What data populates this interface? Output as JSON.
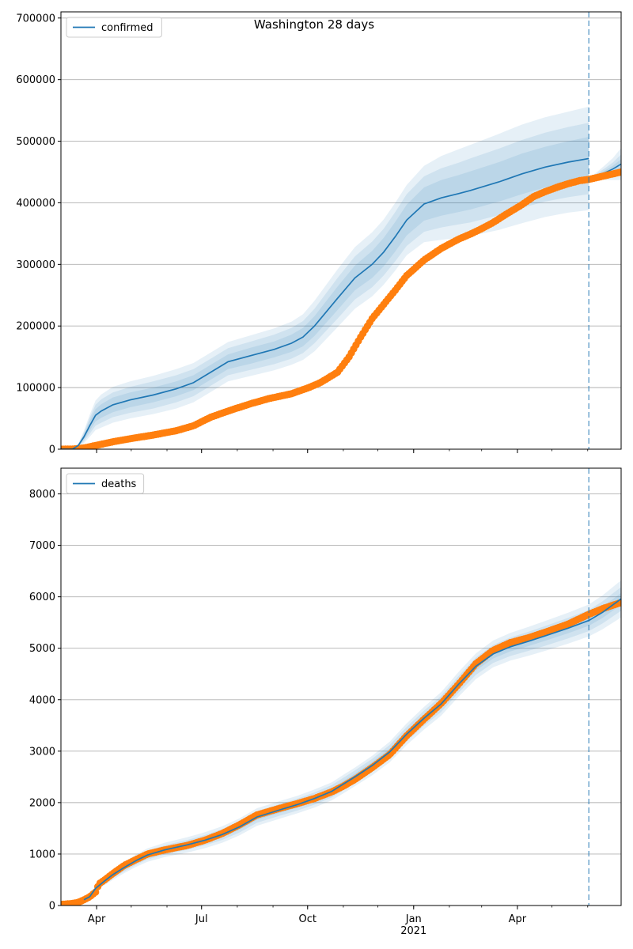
{
  "figure": {
    "title": "Washington 28 days"
  },
  "colors": {
    "model": "#1f77b4",
    "observed": "#ff7f0e",
    "grid": "#b0b0b0",
    "forecast_line": "#1f77b4"
  },
  "chart_data": [
    {
      "type": "line",
      "name": "confirmed",
      "legend": [
        "confirmed"
      ],
      "legend_placement": "top-left",
      "grid": true,
      "ylim": [
        0,
        710000
      ],
      "yticks": [
        0,
        100000,
        200000,
        300000,
        400000,
        500000,
        600000,
        700000
      ],
      "ytick_labels": [
        "0",
        "100000",
        "200000",
        "300000",
        "400000",
        "500000",
        "600000",
        "700000"
      ],
      "x_unit": "days since 2020-03-01",
      "xlim": [
        0,
        486
      ],
      "forecast_start_x": 458,
      "model_end_x": 458,
      "model_line": {
        "x": [
          0,
          10,
          15,
          20,
          25,
          30,
          35,
          45,
          60,
          80,
          100,
          115,
          130,
          145,
          165,
          185,
          200,
          210,
          220,
          240,
          255,
          270,
          280,
          290,
          300,
          315,
          330,
          345,
          355,
          380,
          400,
          420,
          440,
          458
        ],
        "y": [
          0,
          0,
          6000,
          20000,
          38000,
          55000,
          62000,
          72000,
          80000,
          88000,
          98000,
          108000,
          125000,
          142000,
          152000,
          162000,
          172000,
          182000,
          200000,
          245000,
          278000,
          300000,
          320000,
          345000,
          372000,
          398000,
          408000,
          415000,
          420000,
          434000,
          447000,
          458000,
          466000,
          472000
        ]
      },
      "uncertainty_bands": [
        {
          "spread": [
            0,
            0,
            3000,
            10000,
            18000,
            24000,
            27000,
            29000,
            30000,
            31000,
            32000,
            32000,
            32000,
            32000,
            33000,
            34000,
            35000,
            37000,
            41000,
            47000,
            50000,
            52000,
            53000,
            55000,
            57000,
            62000,
            68000,
            72000,
            74000,
            78000,
            80000,
            81000,
            82000,
            84000
          ]
        },
        {
          "spread": [
            0,
            0,
            2000,
            7000,
            13000,
            17000,
            19000,
            20000,
            21000,
            22000,
            22000,
            22000,
            22000,
            22000,
            23000,
            24000,
            25000,
            26000,
            28000,
            33000,
            35000,
            37000,
            38000,
            40000,
            42000,
            45000,
            48000,
            50000,
            52000,
            54000,
            55000,
            56000,
            57000,
            58000
          ]
        },
        {
          "spread": [
            0,
            0,
            1000,
            4000,
            8000,
            10000,
            11000,
            12000,
            12000,
            12000,
            12000,
            12000,
            12000,
            12000,
            13000,
            13000,
            14000,
            15000,
            16000,
            19000,
            20000,
            22000,
            23000,
            24000,
            25000,
            27000,
            29000,
            30000,
            31000,
            32000,
            33000,
            33000,
            34000,
            35000
          ]
        }
      ],
      "forecast_line": {
        "x": [
          458,
          465,
          472,
          479,
          486
        ],
        "y": [
          440000,
          444000,
          449000,
          455000,
          463000
        ],
        "spread": [
          0,
          6000,
          12000,
          18000,
          26000
        ]
      },
      "observed_points": {
        "x": [
          0,
          10,
          20,
          30,
          45,
          60,
          80,
          100,
          115,
          130,
          150,
          165,
          180,
          200,
          215,
          225,
          240,
          250,
          260,
          270,
          280,
          290,
          300,
          315,
          330,
          345,
          355,
          365,
          375,
          385,
          400,
          410,
          420,
          430,
          440,
          450,
          458,
          465,
          472,
          479,
          486
        ],
        "y": [
          0,
          200,
          2000,
          6000,
          12000,
          17000,
          23000,
          30000,
          38000,
          52000,
          65000,
          74000,
          82000,
          90000,
          100000,
          108000,
          125000,
          150000,
          182000,
          212000,
          235000,
          258000,
          282000,
          307000,
          326000,
          341000,
          349000,
          358000,
          368000,
          380000,
          397000,
          410000,
          418000,
          425000,
          431000,
          436000,
          438000,
          441000,
          444000,
          447000,
          450000
        ]
      }
    },
    {
      "type": "line",
      "name": "deaths",
      "legend": [
        "deaths"
      ],
      "legend_placement": "top-left",
      "grid": true,
      "ylim": [
        0,
        8500
      ],
      "yticks": [
        0,
        1000,
        2000,
        3000,
        4000,
        5000,
        6000,
        7000,
        8000
      ],
      "ytick_labels": [
        "0",
        "1000",
        "2000",
        "3000",
        "4000",
        "5000",
        "6000",
        "7000",
        "8000"
      ],
      "x_unit": "days since 2020-03-01",
      "xlim": [
        0,
        486
      ],
      "xticks": [
        31,
        122,
        214,
        306,
        396
      ],
      "xtick_labels": [
        "Apr",
        "Jul",
        "Oct",
        "Jan",
        "Apr"
      ],
      "xtick_sublabels": [
        "",
        "",
        "",
        "2021",
        ""
      ],
      "forecast_start_x": 458,
      "model_end_x": 486,
      "model_line": {
        "x": [
          20,
          25,
          30,
          38,
          45,
          55,
          65,
          75,
          90,
          110,
          125,
          140,
          155,
          170,
          190,
          205,
          220,
          235,
          245,
          255,
          270,
          285,
          300,
          315,
          330,
          345,
          360,
          375,
          390,
          405,
          420,
          440,
          458,
          470,
          486
        ],
        "y": [
          110,
          170,
          330,
          480,
          600,
          740,
          870,
          980,
          1080,
          1180,
          1270,
          1380,
          1530,
          1720,
          1860,
          1960,
          2080,
          2220,
          2360,
          2500,
          2720,
          2980,
          3330,
          3640,
          3920,
          4300,
          4650,
          4890,
          5030,
          5130,
          5240,
          5390,
          5540,
          5700,
          5960
        ]
      },
      "uncertainty_bands": [
        {
          "spread": [
            20,
            30,
            60,
            80,
            100,
            110,
            120,
            130,
            140,
            150,
            155,
            160,
            165,
            170,
            170,
            170,
            175,
            175,
            180,
            180,
            190,
            200,
            210,
            220,
            230,
            240,
            250,
            260,
            270,
            280,
            290,
            300,
            310,
            330,
            360
          ]
        },
        {
          "spread": [
            15,
            20,
            40,
            55,
            65,
            75,
            80,
            85,
            90,
            95,
            100,
            105,
            110,
            112,
            114,
            116,
            118,
            120,
            122,
            125,
            130,
            135,
            140,
            148,
            155,
            160,
            168,
            175,
            180,
            186,
            192,
            200,
            206,
            215,
            230
          ]
        },
        {
          "spread": [
            8,
            10,
            20,
            28,
            32,
            36,
            40,
            42,
            45,
            48,
            50,
            52,
            55,
            56,
            57,
            58,
            59,
            60,
            61,
            62,
            65,
            68,
            70,
            74,
            78,
            80,
            84,
            88,
            90,
            93,
            96,
            100,
            103,
            108,
            115
          ]
        }
      ],
      "observed_points": {
        "x": [
          0,
          10,
          15,
          20,
          25,
          30,
          33,
          38,
          45,
          55,
          65,
          75,
          90,
          110,
          125,
          140,
          155,
          170,
          190,
          205,
          220,
          235,
          245,
          255,
          270,
          285,
          300,
          315,
          330,
          345,
          360,
          375,
          390,
          405,
          420,
          440,
          458,
          470,
          486
        ],
        "y": [
          20,
          40,
          60,
          110,
          170,
          260,
          420,
          500,
          620,
          780,
          890,
          1000,
          1080,
          1170,
          1270,
          1400,
          1570,
          1760,
          1890,
          1980,
          2080,
          2210,
          2320,
          2450,
          2680,
          2930,
          3300,
          3620,
          3930,
          4300,
          4700,
          4960,
          5110,
          5200,
          5310,
          5470,
          5660,
          5770,
          5890
        ]
      }
    }
  ]
}
